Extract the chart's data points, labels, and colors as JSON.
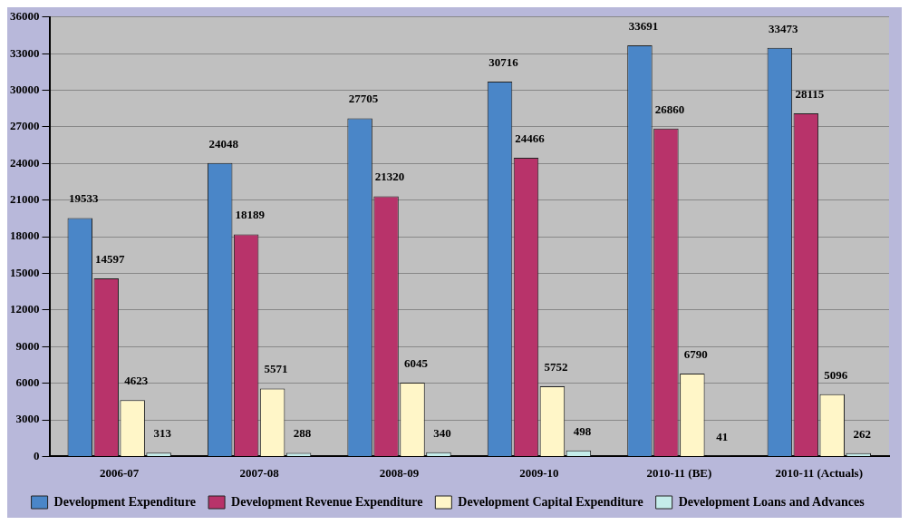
{
  "chart_data": {
    "type": "bar",
    "categories": [
      "2006-07",
      "2007-08",
      "2008-09",
      "2009-10",
      "2010-11 (BE)",
      "2010-11 (Actuals)"
    ],
    "series": [
      {
        "name": "Development Expenditure",
        "color": "#4a86c8",
        "values": [
          19533,
          24048,
          27705,
          30716,
          33691,
          33473
        ]
      },
      {
        "name": "Development Revenue Expenditure",
        "color": "#b8336a",
        "values": [
          14597,
          18189,
          21320,
          24466,
          26860,
          28115
        ]
      },
      {
        "name": "Development Capital Expenditure",
        "color": "#fff6c8",
        "values": [
          4623,
          5571,
          6045,
          5752,
          6790,
          5096
        ]
      },
      {
        "name": "Development Loans and Advances",
        "color": "#c4ecea",
        "values": [
          313,
          288,
          340,
          498,
          41,
          262
        ]
      }
    ],
    "ylim": [
      0,
      36000
    ],
    "yticks": [
      0,
      3000,
      6000,
      9000,
      12000,
      15000,
      18000,
      21000,
      24000,
      27000,
      30000,
      33000,
      36000
    ],
    "grid": "y",
    "legend": "bottom",
    "data_labels": true
  }
}
